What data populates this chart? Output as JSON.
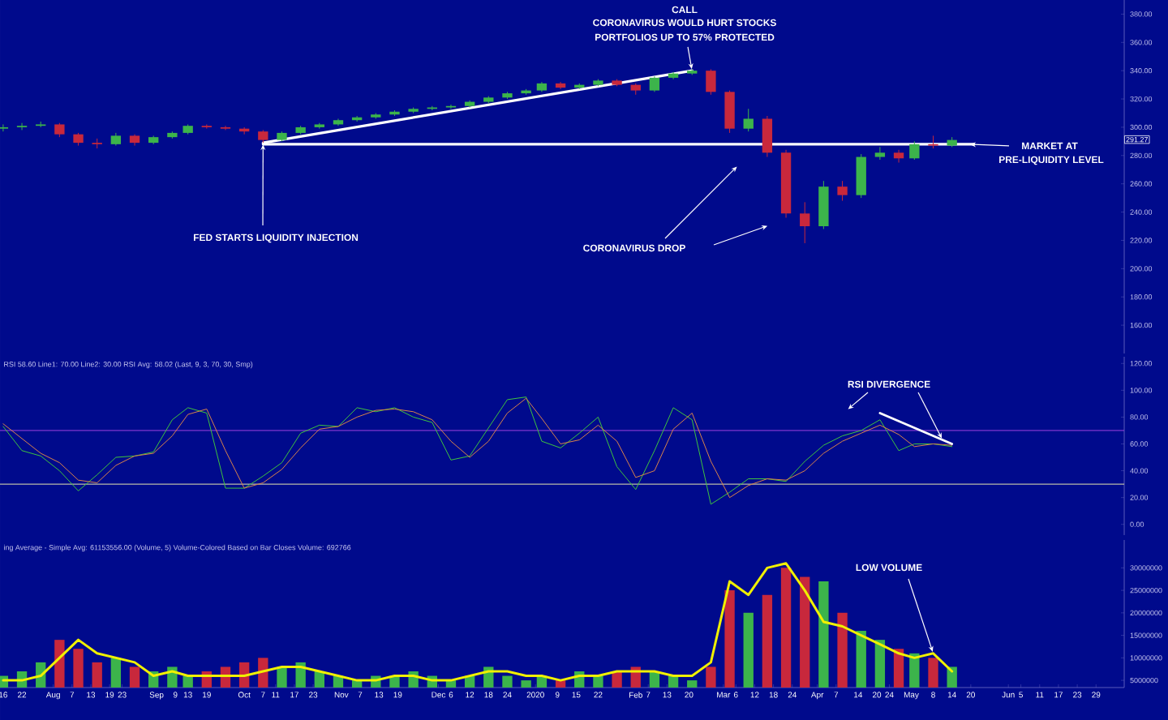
{
  "chart_data": [
    {
      "type": "candlestick",
      "x": [
        "2019-07-16",
        "2019-07-22",
        "2019-07-28",
        "2019-08-03",
        "2019-08-09",
        "2019-08-15",
        "2019-08-21",
        "2019-08-27",
        "2019-09-02",
        "2019-09-08",
        "2019-09-13",
        "2019-09-19",
        "2019-09-25",
        "2019-10-01",
        "2019-10-07",
        "2019-10-13",
        "2019-10-19",
        "2019-10-25",
        "2019-10-31",
        "2019-11-06",
        "2019-11-12",
        "2019-11-18",
        "2019-11-24",
        "2019-11-30",
        "2019-12-06",
        "2019-12-12",
        "2019-12-18",
        "2019-12-24",
        "2019-12-30",
        "2020-01-04",
        "2020-01-10",
        "2020-01-16",
        "2020-01-22",
        "2020-01-28",
        "2020-02-03",
        "2020-02-09",
        "2020-02-15",
        "2020-02-21",
        "2020-02-27",
        "2020-03-04",
        "2020-03-10",
        "2020-03-16",
        "2020-03-22",
        "2020-03-28",
        "2020-04-03",
        "2020-04-09",
        "2020-04-15",
        "2020-04-21",
        "2020-04-27",
        "2020-05-02",
        "2020-05-08",
        "2020-05-14"
      ],
      "ohlc": [
        [
          299,
          302,
          297,
          300
        ],
        [
          300,
          303,
          298,
          301
        ],
        [
          301,
          304,
          300,
          302
        ],
        [
          302,
          303,
          293,
          295
        ],
        [
          295,
          296,
          287,
          289
        ],
        [
          289,
          292,
          285,
          288
        ],
        [
          288,
          296,
          287,
          294
        ],
        [
          294,
          295,
          287,
          289
        ],
        [
          289,
          294,
          288,
          293
        ],
        [
          293,
          297,
          292,
          296
        ],
        [
          296,
          302,
          295,
          301
        ],
        [
          301,
          302,
          299,
          300
        ],
        [
          300,
          301,
          298,
          299
        ],
        [
          299,
          300,
          295,
          297
        ],
        [
          297,
          298,
          289,
          291
        ],
        [
          291,
          297,
          290,
          296
        ],
        [
          296,
          301,
          295,
          300
        ],
        [
          300,
          303,
          299,
          302
        ],
        [
          302,
          306,
          301,
          305
        ],
        [
          305,
          308,
          304,
          307
        ],
        [
          307,
          310,
          306,
          309
        ],
        [
          309,
          312,
          308,
          311
        ],
        [
          311,
          314,
          310,
          313
        ],
        [
          313,
          315,
          312,
          314
        ],
        [
          314,
          316,
          313,
          315
        ],
        [
          315,
          319,
          314,
          318
        ],
        [
          318,
          322,
          317,
          321
        ],
        [
          321,
          325,
          320,
          324
        ],
        [
          324,
          327,
          323,
          326
        ],
        [
          326,
          332,
          325,
          331
        ],
        [
          331,
          332,
          327,
          328
        ],
        [
          328,
          331,
          327,
          330
        ],
        [
          330,
          334,
          329,
          333
        ],
        [
          333,
          334,
          329,
          330
        ],
        [
          330,
          331,
          323,
          326
        ],
        [
          326,
          336,
          325,
          335
        ],
        [
          335,
          339,
          334,
          338
        ],
        [
          338,
          341,
          337,
          340
        ],
        [
          340,
          341,
          323,
          325
        ],
        [
          325,
          326,
          296,
          299
        ],
        [
          299,
          313,
          297,
          306
        ],
        [
          306,
          308,
          279,
          282
        ],
        [
          282,
          284,
          236,
          239
        ],
        [
          239,
          247,
          218,
          230
        ],
        [
          230,
          262,
          228,
          258
        ],
        [
          258,
          262,
          248,
          252
        ],
        [
          252,
          281,
          250,
          279
        ],
        [
          279,
          286,
          277,
          282
        ],
        [
          282,
          284,
          275,
          278
        ],
        [
          278,
          290,
          277,
          288
        ],
        [
          288,
          294,
          285,
          287
        ],
        [
          287,
          293,
          286,
          291
        ]
      ],
      "colors": [
        "#3cb44b",
        "#3cb44b",
        "#3cb44b",
        "#c8283c",
        "#c8283c",
        "#c8283c",
        "#3cb44b",
        "#c8283c",
        "#3cb44b",
        "#3cb44b",
        "#3cb44b",
        "#c8283c",
        "#c8283c",
        "#c8283c",
        "#c8283c",
        "#3cb44b",
        "#3cb44b",
        "#3cb44b",
        "#3cb44b",
        "#3cb44b",
        "#3cb44b",
        "#3cb44b",
        "#3cb44b",
        "#3cb44b",
        "#3cb44b",
        "#3cb44b",
        "#3cb44b",
        "#3cb44b",
        "#3cb44b",
        "#3cb44b",
        "#c8283c",
        "#3cb44b",
        "#3cb44b",
        "#c8283c",
        "#c8283c",
        "#3cb44b",
        "#3cb44b",
        "#3cb44b",
        "#c8283c",
        "#c8283c",
        "#3cb44b",
        "#c8283c",
        "#c8283c",
        "#c8283c",
        "#3cb44b",
        "#c8283c",
        "#3cb44b",
        "#3cb44b",
        "#c8283c",
        "#3cb44b",
        "#c8283c",
        "#3cb44b"
      ],
      "series": [
        {
          "type": "line",
          "x": [
            "2019-10-07",
            "2020-02-21"
          ],
          "values": [
            289,
            340
          ],
          "color": "#ffffff"
        },
        {
          "type": "line",
          "x": [
            "2019-10-07",
            "2020-05-21"
          ],
          "values": [
            288,
            288
          ],
          "color": "#ffffff"
        }
      ],
      "xlim": [
        "2019-07-15",
        "2020-07-08"
      ],
      "ylim": [
        140,
        390
      ],
      "yticks": [
        {
          "value": 160,
          "label": "160.00"
        },
        {
          "value": 180,
          "label": "180.00"
        },
        {
          "value": 200,
          "label": "200.00"
        },
        {
          "value": 220,
          "label": "220.00"
        },
        {
          "value": 240,
          "label": "240.00"
        },
        {
          "value": 260,
          "label": "260.00"
        },
        {
          "value": 280,
          "label": "280.00"
        },
        {
          "value": 300,
          "label": "300.00"
        },
        {
          "value": 320,
          "label": "320.00"
        },
        {
          "value": 340,
          "label": "340.00"
        },
        {
          "value": 360,
          "label": "360.00"
        },
        {
          "value": 380,
          "label": "380.00"
        }
      ],
      "tick_labels": "y",
      "annotations": [
        "CALL",
        "CORONAVIRUS WOULD HURT STOCKS",
        {
          "text": "PORTFOLIOS UP TO 57% PROTECTED",
          "x": "2020-02-21",
          "y": 340
        },
        {
          "text": "FED STARTS LIQUIDITY INJECTION",
          "x": "2019-10-07",
          "y": 289
        },
        "CORONAVIRUS DROP",
        "MARKET AT",
        "PRE-LIQUIDITY  LEVEL",
        {
          "text": "291.27",
          "y": 291.27
        }
      ]
    },
    {
      "type": "line",
      "x": [
        "2019-07-16",
        "2019-07-22",
        "2019-07-28",
        "2019-08-03",
        "2019-08-09",
        "2019-08-15",
        "2019-08-21",
        "2019-08-27",
        "2019-09-02",
        "2019-09-08",
        "2019-09-13",
        "2019-09-19",
        "2019-09-25",
        "2019-10-01",
        "2019-10-07",
        "2019-10-13",
        "2019-10-19",
        "2019-10-25",
        "2019-10-31",
        "2019-11-06",
        "2019-11-12",
        "2019-11-18",
        "2019-11-24",
        "2019-11-30",
        "2019-12-06",
        "2019-12-12",
        "2019-12-18",
        "2019-12-24",
        "2019-12-30",
        "2020-01-04",
        "2020-01-10",
        "2020-01-16",
        "2020-01-22",
        "2020-01-28",
        "2020-02-03",
        "2020-02-09",
        "2020-02-15",
        "2020-02-21",
        "2020-02-27",
        "2020-03-04",
        "2020-03-10",
        "2020-03-16",
        "2020-03-22",
        "2020-03-28",
        "2020-04-03",
        "2020-04-09",
        "2020-04-15",
        "2020-04-21",
        "2020-04-27",
        "2020-05-02",
        "2020-05-08",
        "2020-05-14"
      ],
      "series": [
        {
          "color": "#3ec43e",
          "values": [
            73,
            55,
            51,
            40,
            25,
            37,
            50,
            51,
            54,
            78,
            87,
            83,
            27,
            27,
            36,
            46,
            68,
            74,
            73,
            87,
            84,
            87,
            80,
            76,
            48,
            51,
            72,
            93,
            95,
            62,
            57,
            68,
            80,
            43,
            26,
            55,
            87,
            78,
            15,
            24,
            34,
            34,
            32,
            47,
            59,
            66,
            70,
            78,
            55,
            60,
            60,
            58
          ]
        },
        {
          "color": "#d9844a",
          "values": [
            75,
            64,
            53,
            46,
            33,
            31,
            44,
            51,
            53,
            66,
            82,
            86,
            55,
            27,
            31,
            41,
            57,
            71,
            73,
            80,
            85,
            86,
            84,
            78,
            62,
            50,
            62,
            83,
            94,
            79,
            60,
            63,
            74,
            62,
            35,
            40,
            71,
            83,
            47,
            20,
            29,
            34,
            33,
            40,
            53,
            62,
            68,
            74,
            67,
            58,
            60,
            59
          ]
        },
        {
          "color": "#ffffff",
          "x": [
            "2020-04-21",
            "2020-05-14"
          ],
          "values": [
            83,
            60
          ]
        }
      ],
      "ref_lines": [
        {
          "axis": "y",
          "value": 70,
          "color": "#a040e0"
        },
        {
          "axis": "y",
          "value": 30,
          "color": "#e8e8b0"
        }
      ],
      "xlim": [
        "2019-07-15",
        "2020-07-08"
      ],
      "ylim": [
        -8,
        125
      ],
      "yticks": [
        {
          "value": 0,
          "label": "0.00"
        },
        {
          "value": 20,
          "label": "20.00"
        },
        {
          "value": 40,
          "label": "40.00"
        },
        {
          "value": 60,
          "label": "60.00"
        },
        {
          "value": 80,
          "label": "80.00"
        },
        {
          "value": 100,
          "label": "100.00"
        },
        {
          "value": 120,
          "label": "120.00"
        }
      ],
      "tick_labels": "y",
      "annotations": [
        "RSI 58.60  Line1: 70.00  Line2: 30.00  RSI Avg: 58.02  (Last, 9, 3, 70, 30, Smp)",
        {
          "text": "RSI DIVERGENCE",
          "x": "2020-05-11",
          "y": 63
        }
      ]
    },
    {
      "type": "bar",
      "x": [
        "2019-07-16",
        "2019-07-22",
        "2019-07-28",
        "2019-08-03",
        "2019-08-09",
        "2019-08-15",
        "2019-08-21",
        "2019-08-27",
        "2019-09-02",
        "2019-09-08",
        "2019-09-13",
        "2019-09-19",
        "2019-09-25",
        "2019-10-01",
        "2019-10-07",
        "2019-10-13",
        "2019-10-19",
        "2019-10-25",
        "2019-10-31",
        "2019-11-06",
        "2019-11-12",
        "2019-11-18",
        "2019-11-24",
        "2019-11-30",
        "2019-12-06",
        "2019-12-12",
        "2019-12-18",
        "2019-12-24",
        "2019-12-30",
        "2020-01-04",
        "2020-01-10",
        "2020-01-16",
        "2020-01-22",
        "2020-01-28",
        "2020-02-03",
        "2020-02-09",
        "2020-02-15",
        "2020-02-21",
        "2020-02-27",
        "2020-03-04",
        "2020-03-10",
        "2020-03-16",
        "2020-03-22",
        "2020-03-28",
        "2020-04-03",
        "2020-04-09",
        "2020-04-15",
        "2020-04-21",
        "2020-04-27",
        "2020-05-02",
        "2020-05-08",
        "2020-05-14"
      ],
      "series": [
        {
          "values": [
            6000000,
            7000000,
            9000000,
            14000000,
            12000000,
            9000000,
            10000000,
            8000000,
            7000000,
            8000000,
            6000000,
            7000000,
            8000000,
            9000000,
            10000000,
            8000000,
            9000000,
            7000000,
            6000000,
            5000000,
            6000000,
            6000000,
            7000000,
            6000000,
            5000000,
            6000000,
            8000000,
            6000000,
            5000000,
            6000000,
            5000000,
            7000000,
            6000000,
            7000000,
            8000000,
            7000000,
            6000000,
            5000000,
            8000000,
            25000000,
            20000000,
            24000000,
            30000000,
            28000000,
            27000000,
            20000000,
            16000000,
            14000000,
            12000000,
            11000000,
            10000000,
            8000000
          ],
          "colors": [
            "#3cb44b",
            "#3cb44b",
            "#3cb44b",
            "#c8283c",
            "#c8283c",
            "#c8283c",
            "#3cb44b",
            "#c8283c",
            "#3cb44b",
            "#3cb44b",
            "#3cb44b",
            "#c8283c",
            "#c8283c",
            "#c8283c",
            "#c8283c",
            "#3cb44b",
            "#3cb44b",
            "#3cb44b",
            "#3cb44b",
            "#3cb44b",
            "#3cb44b",
            "#3cb44b",
            "#3cb44b",
            "#3cb44b",
            "#3cb44b",
            "#3cb44b",
            "#3cb44b",
            "#3cb44b",
            "#3cb44b",
            "#3cb44b",
            "#c8283c",
            "#3cb44b",
            "#3cb44b",
            "#c8283c",
            "#c8283c",
            "#3cb44b",
            "#3cb44b",
            "#3cb44b",
            "#c8283c",
            "#c8283c",
            "#3cb44b",
            "#c8283c",
            "#c8283c",
            "#c8283c",
            "#3cb44b",
            "#c8283c",
            "#3cb44b",
            "#3cb44b",
            "#c8283c",
            "#3cb44b",
            "#c8283c",
            "#3cb44b"
          ]
        },
        {
          "type": "line",
          "color": "#f0f000",
          "values": [
            5000000,
            5000000,
            6000000,
            10000000,
            14000000,
            11000000,
            10000000,
            9000000,
            6000000,
            7000000,
            6000000,
            6000000,
            6000000,
            6000000,
            7000000,
            8000000,
            8000000,
            7000000,
            6000000,
            5000000,
            5000000,
            6000000,
            6000000,
            5000000,
            5000000,
            6000000,
            7000000,
            7000000,
            6000000,
            6000000,
            5000000,
            6000000,
            6000000,
            7000000,
            7000000,
            7000000,
            6000000,
            6000000,
            9000000,
            27000000,
            24000000,
            30000000,
            31000000,
            25000000,
            18000000,
            17000000,
            15000000,
            13000000,
            11000000,
            10000000,
            11000000,
            7000000
          ]
        }
      ],
      "xlim": [
        "2019-07-15",
        "2020-07-08"
      ],
      "ylim": [
        3400000,
        36200000
      ],
      "xticks": [
        {
          "value": "2019-07-16",
          "label": "16"
        },
        {
          "value": "2019-07-22",
          "label": "22"
        },
        {
          "value": "2019-08-01",
          "label": "Aug"
        },
        {
          "value": "2019-08-07",
          "label": "7"
        },
        {
          "value": "2019-08-13",
          "label": "13"
        },
        {
          "value": "2019-08-19",
          "label": "19"
        },
        {
          "value": "2019-08-23",
          "label": "23"
        },
        {
          "value": "2019-09-03",
          "label": "Sep"
        },
        {
          "value": "2019-09-09",
          "label": "9"
        },
        {
          "value": "2019-09-13",
          "label": "13"
        },
        {
          "value": "2019-09-19",
          "label": "19"
        },
        {
          "value": "2019-10-01",
          "label": "Oct"
        },
        {
          "value": "2019-10-07",
          "label": "7"
        },
        {
          "value": "2019-10-11",
          "label": "11"
        },
        {
          "value": "2019-10-17",
          "label": "17"
        },
        {
          "value": "2019-10-23",
          "label": "23"
        },
        {
          "value": "2019-11-01",
          "label": "Nov"
        },
        {
          "value": "2019-11-07",
          "label": "7"
        },
        {
          "value": "2019-11-13",
          "label": "13"
        },
        {
          "value": "2019-11-19",
          "label": "19"
        },
        {
          "value": "2019-12-02",
          "label": "Dec"
        },
        {
          "value": "2019-12-06",
          "label": "6"
        },
        {
          "value": "2019-12-12",
          "label": "12"
        },
        {
          "value": "2019-12-18",
          "label": "18"
        },
        {
          "value": "2019-12-24",
          "label": "24"
        },
        {
          "value": "2020-01-02",
          "label": "2020"
        },
        {
          "value": "2020-01-09",
          "label": "9"
        },
        {
          "value": "2020-01-15",
          "label": "15"
        },
        {
          "value": "2020-01-22",
          "label": "22"
        },
        {
          "value": "2020-02-03",
          "label": "Feb"
        },
        {
          "value": "2020-02-07",
          "label": "7"
        },
        {
          "value": "2020-02-13",
          "label": "13"
        },
        {
          "value": "2020-02-20",
          "label": "20"
        },
        {
          "value": "2020-03-02",
          "label": "Mar"
        },
        {
          "value": "2020-03-06",
          "label": "6"
        },
        {
          "value": "2020-03-12",
          "label": "12"
        },
        {
          "value": "2020-03-18",
          "label": "18"
        },
        {
          "value": "2020-03-24",
          "label": "24"
        },
        {
          "value": "2020-04-01",
          "label": "Apr"
        },
        {
          "value": "2020-04-07",
          "label": "7"
        },
        {
          "value": "2020-04-14",
          "label": "14"
        },
        {
          "value": "2020-04-20",
          "label": "20"
        },
        {
          "value": "2020-04-24",
          "label": "24"
        },
        {
          "value": "2020-05-01",
          "label": "May"
        },
        {
          "value": "2020-05-08",
          "label": "8"
        },
        {
          "value": "2020-05-14",
          "label": "14"
        },
        {
          "value": "2020-05-20",
          "label": "20"
        },
        {
          "value": "2020-06-01",
          "label": "Jun"
        },
        {
          "value": "2020-06-05",
          "label": "5"
        },
        {
          "value": "2020-06-11",
          "label": "11"
        },
        {
          "value": "2020-06-17",
          "label": "17"
        },
        {
          "value": "2020-06-23",
          "label": "23"
        },
        {
          "value": "2020-06-29",
          "label": "29"
        }
      ],
      "yticks": [
        5000000,
        10000000,
        15000000,
        20000000,
        25000000,
        30000000
      ],
      "annotations": [
        "ing Average - Simple  Avg: 61153556.00  (Volume, 5)  Volume-Colored Based on Bar Closes  Volume: 692766",
        {
          "text": "LOW VOLUME",
          "x": "2020-05-08",
          "y": 11000000
        }
      ]
    }
  ]
}
